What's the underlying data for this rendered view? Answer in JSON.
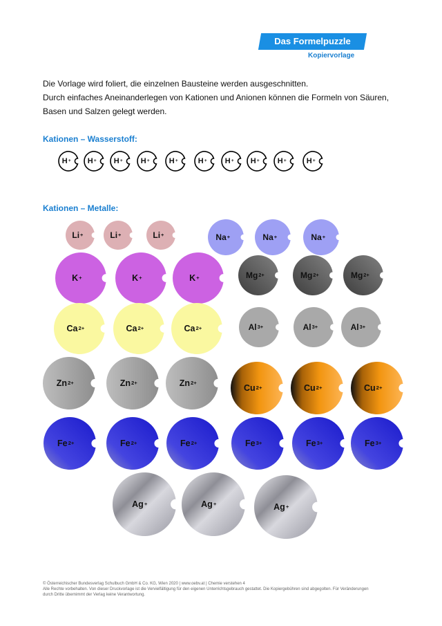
{
  "header": {
    "title": "Das Formelpuzzle",
    "subtitle": "Kopiervorlage"
  },
  "intro": {
    "line1": "Die Vorlage wird foliert, die einzelnen Bausteine werden ausgeschnitten.",
    "line2": "Durch einfaches Aneinanderlegen von Kationen und Anionen können die Formeln von Säuren,",
    "line3": "Basen und Salzen gelegt werden."
  },
  "sections": {
    "hydrogen": "Kationen – Wasserstoff:",
    "metals": "Kationen – Metalle:"
  },
  "colors": {
    "accent": "#1a8fe3",
    "Li": "#ddb0b4",
    "Na": "#9ea0f4",
    "K": "#cc62e2",
    "Mg": "#585858",
    "Ca": "#faf8a0",
    "Al": "#a9a9a9",
    "Zn": "#acacac",
    "Cu": "#f49612",
    "Fe": "#3e3ede",
    "Ag": "#c4c4cc"
  },
  "pieces": [
    {
      "symbol": "H",
      "charge": "+"
    },
    {
      "symbol": "H",
      "charge": "+"
    },
    {
      "symbol": "H",
      "charge": "+"
    },
    {
      "symbol": "H",
      "charge": "+"
    },
    {
      "symbol": "H",
      "charge": "+"
    },
    {
      "symbol": "H",
      "charge": "+"
    },
    {
      "symbol": "H",
      "charge": "+"
    },
    {
      "symbol": "H",
      "charge": "+"
    },
    {
      "symbol": "H",
      "charge": "+"
    },
    {
      "symbol": "H",
      "charge": "+"
    },
    {
      "symbol": "Li",
      "charge": "+"
    },
    {
      "symbol": "Li",
      "charge": "+"
    },
    {
      "symbol": "Li",
      "charge": "+"
    },
    {
      "symbol": "Na",
      "charge": "+"
    },
    {
      "symbol": "Na",
      "charge": "+"
    },
    {
      "symbol": "Na",
      "charge": "+"
    },
    {
      "symbol": "K",
      "charge": "+"
    },
    {
      "symbol": "K",
      "charge": "+"
    },
    {
      "symbol": "K",
      "charge": "+"
    },
    {
      "symbol": "Mg",
      "charge": "2+"
    },
    {
      "symbol": "Mg",
      "charge": "2+"
    },
    {
      "symbol": "Mg",
      "charge": "2+"
    },
    {
      "symbol": "Ca",
      "charge": "2+"
    },
    {
      "symbol": "Ca",
      "charge": "2+"
    },
    {
      "symbol": "Ca",
      "charge": "2+"
    },
    {
      "symbol": "Al",
      "charge": "3+"
    },
    {
      "symbol": "Al",
      "charge": "3+"
    },
    {
      "symbol": "Al",
      "charge": "3+"
    },
    {
      "symbol": "Zn",
      "charge": "2+"
    },
    {
      "symbol": "Zn",
      "charge": "2+"
    },
    {
      "symbol": "Zn",
      "charge": "2+"
    },
    {
      "symbol": "Cu",
      "charge": "2+"
    },
    {
      "symbol": "Cu",
      "charge": "2+"
    },
    {
      "symbol": "Cu",
      "charge": "2+"
    },
    {
      "symbol": "Fe",
      "charge": "2+"
    },
    {
      "symbol": "Fe",
      "charge": "2+"
    },
    {
      "symbol": "Fe",
      "charge": "2+"
    },
    {
      "symbol": "Fe",
      "charge": "3+"
    },
    {
      "symbol": "Fe",
      "charge": "3+"
    },
    {
      "symbol": "Fe",
      "charge": "3+"
    },
    {
      "symbol": "Ag",
      "charge": "+"
    },
    {
      "symbol": "Ag",
      "charge": "+"
    },
    {
      "symbol": "Ag",
      "charge": "+"
    }
  ],
  "footer": {
    "line1": "© Österreichischer Bundesverlag Schulbuch GmbH & Co. KG, Wien 2020 | www.oebv.at | Chemie verstehen 4",
    "line2": "Alle Rechte vorbehalten. Von dieser Druckvorlage ist die Vervielfältigung für den eigenen Unterrichtsgebrauch gestattet. Die Kopiergebühren sind abgegolten. Für Veränderungen",
    "line3": "durch Dritte übernimmt der Verlag keine Verantwortung."
  }
}
